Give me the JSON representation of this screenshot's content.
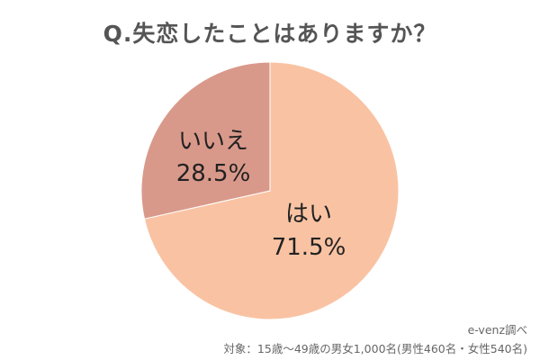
{
  "chart_data": {
    "type": "pie",
    "title": "Q.失恋したことはありますか？",
    "slices": [
      {
        "name": "はい",
        "percent_label": "71.5%",
        "value": 71.5,
        "color": "#F9C3A3"
      },
      {
        "name": "いいえ",
        "percent_label": "28.5%",
        "value": 28.5,
        "color": "#D9998A"
      }
    ],
    "source": "e-venz調べ",
    "note": "対象：15歳～49歳の男女1,000名(男性460名・女性540名)"
  }
}
